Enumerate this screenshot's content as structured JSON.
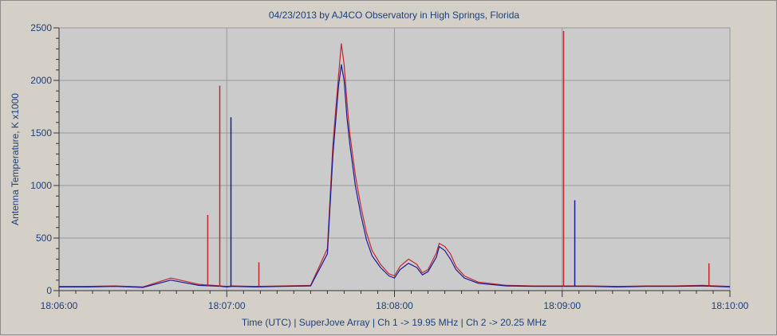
{
  "chart_data": {
    "type": "line",
    "title": "04/23/2013  by  AJ4CO Observatory  in  High Springs, Florida",
    "xlabel": "Time (UTC)  |  SuperJove Array  |  Ch 1 -> 19.95 MHz  |  Ch 2 -> 20.25 MHz",
    "ylabel": "Antenna Temperature, K x1000",
    "xlim": [
      0,
      240
    ],
    "ylim": [
      0,
      2500
    ],
    "x_ticks": [
      0,
      60,
      120,
      180,
      240
    ],
    "x_tick_labels": [
      "18:06:00",
      "18:07:00",
      "18:08:00",
      "18:09:00",
      "18:10:00"
    ],
    "y_ticks": [
      0,
      500,
      1000,
      1500,
      2000,
      2500
    ],
    "y_tick_labels": [
      "0",
      "500",
      "1000",
      "1500",
      "2000",
      "2500"
    ],
    "grid": true,
    "background_color": "#cbcbcb",
    "grid_color": "#9a9a9a",
    "series": [
      {
        "color": "#c0282d",
        "x": [
          0,
          10,
          20,
          30,
          40,
          50,
          55,
          58,
          60,
          62,
          70,
          80,
          90,
          96,
          98,
          100,
          101,
          102,
          103,
          104,
          105,
          106,
          108,
          110,
          112,
          115,
          118,
          120,
          122,
          125,
          128,
          130,
          132,
          135,
          136,
          138,
          140,
          142,
          145,
          150,
          160,
          170,
          180,
          190,
          200,
          210,
          220,
          230,
          240
        ],
        "y": [
          40,
          40,
          45,
          35,
          120,
          60,
          50,
          45,
          40,
          45,
          40,
          45,
          50,
          400,
          1400,
          2050,
          2350,
          2150,
          1800,
          1500,
          1300,
          1100,
          800,
          550,
          380,
          250,
          160,
          140,
          230,
          300,
          250,
          170,
          200,
          360,
          450,
          420,
          350,
          230,
          140,
          80,
          50,
          45,
          45,
          45,
          40,
          45,
          45,
          50,
          40
        ]
      },
      {
        "color": "#1a1a9c",
        "x": [
          0,
          10,
          20,
          30,
          40,
          50,
          55,
          58,
          60,
          62,
          70,
          80,
          90,
          96,
          98,
          100,
          101,
          102,
          103,
          104,
          105,
          106,
          108,
          110,
          112,
          115,
          118,
          120,
          122,
          125,
          128,
          130,
          132,
          135,
          136,
          138,
          140,
          142,
          145,
          150,
          160,
          170,
          180,
          190,
          200,
          210,
          220,
          230,
          240
        ],
        "y": [
          35,
          35,
          40,
          30,
          100,
          50,
          45,
          40,
          35,
          40,
          35,
          40,
          45,
          350,
          1300,
          1950,
          2150,
          2000,
          1650,
          1400,
          1200,
          1000,
          720,
          480,
          330,
          220,
          140,
          120,
          200,
          260,
          220,
          150,
          180,
          320,
          420,
          380,
          300,
          200,
          120,
          70,
          45,
          40,
          40,
          40,
          35,
          40,
          40,
          45,
          35
        ]
      }
    ],
    "spikes": [
      {
        "color": "#c0282d",
        "x": 53.2,
        "y": 720
      },
      {
        "color": "#c0282d",
        "x": 57.5,
        "y": 1950
      },
      {
        "color": "#1a1a9c",
        "x": 61.5,
        "y": 1650
      },
      {
        "color": "#c0282d",
        "x": 71.5,
        "y": 270
      },
      {
        "color": "#c0282d",
        "x": 180.5,
        "y": 2470
      },
      {
        "color": "#1a1a9c",
        "x": 184.5,
        "y": 860
      },
      {
        "color": "#c0282d",
        "x": 232.5,
        "y": 260
      }
    ]
  }
}
